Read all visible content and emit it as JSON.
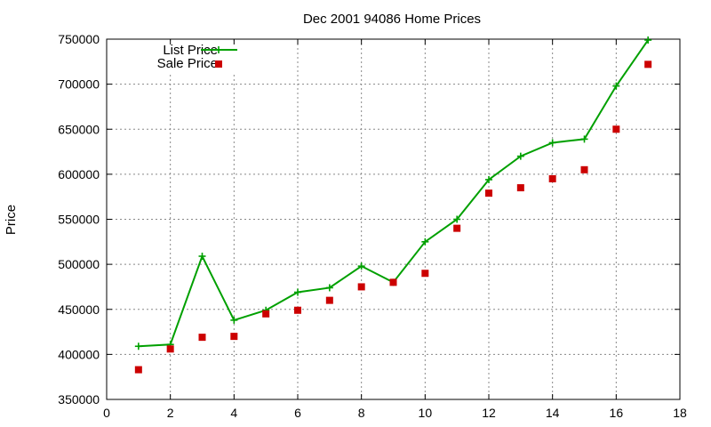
{
  "chart_data": {
    "type": "line",
    "title": "Dec 2001 94086 Home Prices",
    "xlabel": "",
    "ylabel": "Price",
    "xlim": [
      0,
      18
    ],
    "ylim": [
      350000,
      750000
    ],
    "x_ticks": [
      0,
      2,
      4,
      6,
      8,
      10,
      12,
      14,
      16,
      18
    ],
    "y_ticks": [
      350000,
      400000,
      450000,
      500000,
      550000,
      600000,
      650000,
      700000,
      750000
    ],
    "grid": true,
    "legend_position": "top-left",
    "series": [
      {
        "name": "List Price",
        "style": "line-with-plus-markers",
        "color": "#00a000",
        "x": [
          1,
          2,
          3,
          4,
          5,
          6,
          7,
          8,
          9,
          10,
          11,
          12,
          13,
          14,
          15,
          16,
          17
        ],
        "values": [
          409000,
          411000,
          509000,
          438000,
          449000,
          469000,
          474000,
          498000,
          480000,
          525000,
          550000,
          594000,
          620000,
          635000,
          639000,
          698000,
          749000
        ]
      },
      {
        "name": "Sale Price",
        "style": "square-markers",
        "color": "#cc0000",
        "x": [
          1,
          2,
          3,
          4,
          5,
          6,
          7,
          8,
          9,
          10,
          11,
          12,
          13,
          14,
          15,
          16,
          17
        ],
        "values": [
          383000,
          406000,
          419000,
          420000,
          445000,
          449000,
          460000,
          475000,
          480000,
          490000,
          540000,
          579000,
          585000,
          595000,
          605000,
          650000,
          722000
        ]
      }
    ]
  }
}
